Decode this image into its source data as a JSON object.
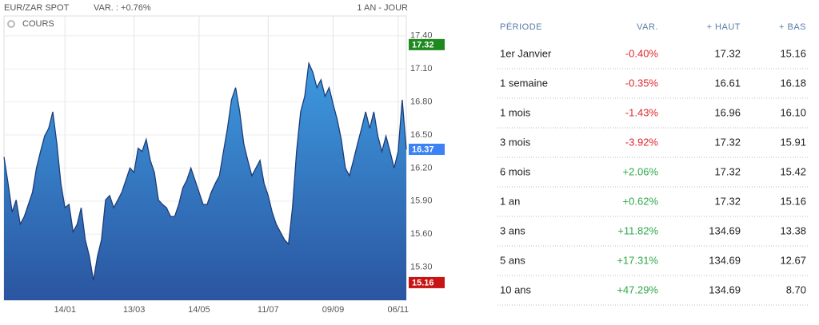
{
  "header": {
    "instrument": "EUR/ZAR SPOT",
    "change": "VAR. : +0.76%",
    "period": "1 AN - JOUR"
  },
  "chart_data": {
    "type": "area",
    "legend_label": "COURS",
    "categories": [
      null,
      null,
      null,
      null,
      null,
      null,
      null,
      null,
      null,
      null,
      null,
      null,
      null,
      null,
      null,
      "14/01",
      null,
      null,
      null,
      null,
      null,
      null,
      null,
      null,
      null,
      null,
      null,
      null,
      null,
      null,
      null,
      null,
      "13/03",
      null,
      null,
      null,
      null,
      null,
      null,
      null,
      null,
      null,
      null,
      null,
      null,
      null,
      null,
      null,
      "14/05",
      null,
      null,
      null,
      null,
      null,
      null,
      null,
      null,
      null,
      null,
      null,
      null,
      null,
      null,
      null,
      null,
      "11/07",
      null,
      null,
      null,
      null,
      null,
      null,
      null,
      null,
      null,
      null,
      null,
      null,
      null,
      null,
      null,
      "09/09",
      null,
      null,
      null,
      null,
      null,
      null,
      null,
      null,
      null,
      null,
      null,
      null,
      null,
      null,
      null,
      "06/11",
      null,
      null
    ],
    "values": [
      16.3,
      16.06,
      15.8,
      15.91,
      15.69,
      15.76,
      15.87,
      15.98,
      16.2,
      16.35,
      16.49,
      16.56,
      16.71,
      16.42,
      16.06,
      15.84,
      15.87,
      15.62,
      15.69,
      15.84,
      15.55,
      15.4,
      15.18,
      15.4,
      15.55,
      15.91,
      15.95,
      15.84,
      15.91,
      15.98,
      16.09,
      16.2,
      16.16,
      16.38,
      16.35,
      16.46,
      16.27,
      16.16,
      15.91,
      15.87,
      15.84,
      15.76,
      15.76,
      15.87,
      16.02,
      16.09,
      16.2,
      16.09,
      15.98,
      15.87,
      15.87,
      15.98,
      16.06,
      16.13,
      16.35,
      16.56,
      16.82,
      16.93,
      16.71,
      16.42,
      16.27,
      16.13,
      16.2,
      16.27,
      16.06,
      15.95,
      15.8,
      15.69,
      15.62,
      15.55,
      15.51,
      15.84,
      16.35,
      16.71,
      16.85,
      17.15,
      17.07,
      16.93,
      17.0,
      16.85,
      16.93,
      16.78,
      16.64,
      16.46,
      16.2,
      16.13,
      16.27,
      16.42,
      16.56,
      16.71,
      16.56,
      16.71,
      16.49,
      16.35,
      16.49,
      16.35,
      16.2,
      16.35,
      16.82,
      16.37
    ],
    "ylim": [
      15.0,
      17.58
    ],
    "yticks": [
      {
        "value": 15.3,
        "label": "15.30"
      },
      {
        "value": 15.6,
        "label": "15.60"
      },
      {
        "value": 15.9,
        "label": "15.90"
      },
      {
        "value": 16.2,
        "label": "16.20"
      },
      {
        "value": 16.5,
        "label": "16.50"
      },
      {
        "value": 16.8,
        "label": "16.80"
      },
      {
        "value": 17.1,
        "label": "17.10"
      },
      {
        "value": 17.4,
        "label": "17.40"
      }
    ],
    "grid": true,
    "badges": [
      {
        "value": 17.32,
        "color": "#1e8a1e"
      },
      {
        "value": 16.37,
        "color": "#3b82f6"
      },
      {
        "value": 15.16,
        "color": "#c81414"
      }
    ]
  },
  "table": {
    "columns": [
      "PÉRIODE",
      "VAR.",
      "+ HAUT",
      "+ BAS"
    ],
    "rows": [
      [
        "1er Janvier",
        "-0.40%",
        "17.32",
        "15.16"
      ],
      [
        "1 semaine",
        "-0.35%",
        "16.61",
        "16.18"
      ],
      [
        "1 mois",
        "-1.43%",
        "16.96",
        "16.10"
      ],
      [
        "3 mois",
        "-3.92%",
        "17.32",
        "15.91"
      ],
      [
        "6 mois",
        "+2.06%",
        "17.32",
        "15.42"
      ],
      [
        "1 an",
        "+0.62%",
        "17.32",
        "15.16"
      ],
      [
        "3 ans",
        "+11.82%",
        "134.69",
        "13.38"
      ],
      [
        "5 ans",
        "+17.31%",
        "134.69",
        "12.67"
      ],
      [
        "10 ans",
        "+47.29%",
        "134.69",
        "8.70"
      ]
    ]
  }
}
